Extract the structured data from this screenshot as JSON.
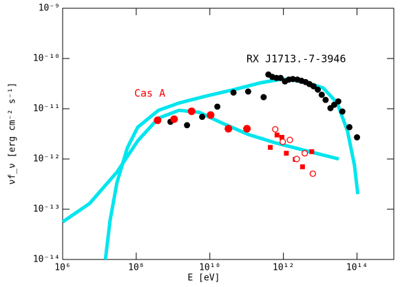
{
  "chart_data": {
    "type": "scatter",
    "xlabel": "E [eV]",
    "ylabel": "νf_ν [erg cm⁻² s⁻¹]",
    "annotations": [
      {
        "text": "RX J1713.-7-3946",
        "color": "#000000"
      },
      {
        "text": "Cas A",
        "color": "#ff0000"
      }
    ],
    "xscale": "log",
    "yscale": "log",
    "xlim": [
      1000000.0,
      1000000000000000.0
    ],
    "ylim": [
      1e-14,
      1e-09
    ],
    "xticks": [
      {
        "value": 1000000.0,
        "label": "10⁶"
      },
      {
        "value": 100000000.0,
        "label": "10⁸"
      },
      {
        "value": 10000000000.0,
        "label": "10¹⁰"
      },
      {
        "value": 1000000000000.0,
        "label": "10¹²"
      },
      {
        "value": 100000000000000.0,
        "label": "10¹⁴"
      }
    ],
    "yticks": [
      {
        "value": 1e-14,
        "label": "10⁻¹⁴"
      },
      {
        "value": 1e-13,
        "label": "10⁻¹³"
      },
      {
        "value": 1e-12,
        "label": "10⁻¹²"
      },
      {
        "value": 1e-11,
        "label": "10⁻¹¹"
      },
      {
        "value": 1e-10,
        "label": "10⁻¹⁰"
      },
      {
        "value": 1e-09,
        "label": "10⁻⁹"
      }
    ],
    "series": [
      {
        "marker": "line",
        "color": "#00e5ee",
        "x": [
          1000000.0,
          5400000.0,
          30000000.0,
          110000000.0,
          400000000.0,
          1450000000.0,
          5200000000.0,
          19000000000.0,
          107000000000.0,
          600000000000.0,
          5100000000000.0,
          32000000000000.0
        ],
        "values": [
          5.6e-14,
          1.3e-13,
          5.5e-13,
          2.3e-12,
          6.5e-12,
          9.3e-12,
          8.5e-12,
          5.4e-12,
          3.1e-12,
          2.1e-12,
          1.4e-12,
          1e-12
        ]
      },
      {
        "marker": "line",
        "color": "#00e5ee",
        "x": [
          14500000.0,
          19500000.0,
          30000000.0,
          58000000.0,
          110000000.0,
          400000000.0,
          1450000000.0,
          8100000000.0,
          45000000000.0,
          250000000000.0,
          910000000000.0,
          3300000000000.0,
          12000000000000.0,
          29000000000000.0,
          55000000000000.0,
          85000000000000.0,
          105000000000000.0
        ],
        "values": [
          1e-14,
          6e-14,
          3.4e-13,
          1.7e-12,
          4.3e-12,
          9.3e-12,
          1.3e-11,
          1.8e-11,
          2.4e-11,
          3.3e-11,
          3.9e-11,
          3.5e-11,
          2.6e-11,
          1.3e-11,
          3.6e-12,
          7.6e-13,
          2e-13
        ]
      },
      {
        "marker": "filled-circle",
        "color": "#000000",
        "x": [
          850000000.0,
          2400000000.0,
          6200000000.0,
          16000000000.0,
          44000000000.0,
          110000000000.0,
          290000000000.0,
          390000000000.0,
          500000000000.0,
          650000000000.0,
          840000000000.0,
          1100000000000.0,
          1400000000000.0,
          1800000000000.0,
          2400000000000.0,
          3100000000000.0,
          4000000000000.0,
          5100000000000.0,
          6600000000000.0,
          8600000000000.0,
          11000000000000.0,
          14000000000000.0,
          19000000000000.0,
          24000000000000.0,
          31000000000000.0,
          40000000000000.0,
          62000000000000.0,
          100000000000000.0
        ],
        "values": [
          5.5e-12,
          4.7e-12,
          6.9e-12,
          1.1e-11,
          2.1e-11,
          2.2e-11,
          1.7e-11,
          4.8e-11,
          4.3e-11,
          4.1e-11,
          4.1e-11,
          3.5e-11,
          3.8e-11,
          3.9e-11,
          3.8e-11,
          3.6e-11,
          3.4e-11,
          3.1e-11,
          2.8e-11,
          2.4e-11,
          1.9e-11,
          1.5e-11,
          1.03e-11,
          1.2e-11,
          1.4e-11,
          8.8e-12,
          4.3e-12,
          2.7e-12
        ]
      },
      {
        "marker": "filled-circle-large",
        "color": "#ff0000",
        "x": [
          380000000.0,
          1070000000.0,
          3200000000.0,
          10500000000.0,
          32000000000.0,
          102000000000.0
        ],
        "values": [
          5.9e-12,
          6.2e-12,
          8.9e-12,
          7.5e-12,
          4e-12,
          4e-12
        ]
      },
      {
        "marker": "square",
        "color": "#ff0000",
        "x": [
          440000000000.0,
          670000000000.0,
          910000000000.0,
          1200000000000.0,
          2100000000000.0,
          3300000000000.0,
          5900000000000.0
        ],
        "values": [
          1.7e-12,
          3e-12,
          2.7e-12,
          1.3e-12,
          9.8e-13,
          7e-13,
          1.4e-12
        ]
      },
      {
        "marker": "open-circle",
        "color": "#ff0000",
        "x": [
          600000000000.0,
          960000000000.0,
          1500000000000.0,
          2300000000000.0,
          3800000000000.0,
          6300000000000.0
        ],
        "values": [
          3.9e-12,
          2.2e-12,
          2.4e-12,
          1e-12,
          1.3e-12,
          5.1e-13
        ]
      }
    ]
  }
}
